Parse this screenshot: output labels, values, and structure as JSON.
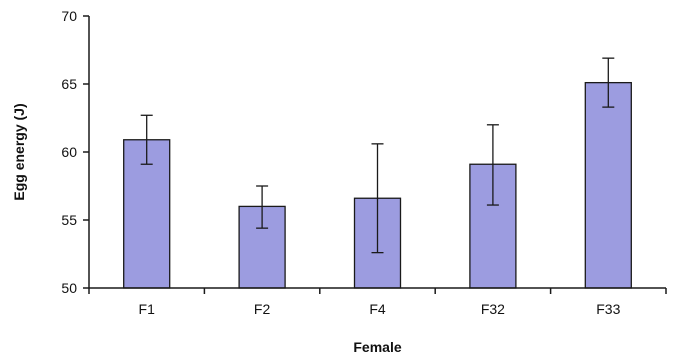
{
  "chart_data": {
    "type": "bar",
    "title": "",
    "xlabel": "Female",
    "ylabel": "Egg energy (J)",
    "categories": [
      "F1",
      "F2",
      "F4",
      "F32",
      "F33"
    ],
    "values": [
      60.9,
      56.0,
      56.6,
      59.1,
      65.1
    ],
    "error_bars": [
      {
        "low": 59.1,
        "high": 62.7
      },
      {
        "low": 54.4,
        "high": 57.5
      },
      {
        "low": 52.6,
        "high": 60.6
      },
      {
        "low": 56.1,
        "high": 62.0
      },
      {
        "low": 63.3,
        "high": 66.9
      }
    ],
    "ylim": [
      50,
      70
    ],
    "yticks": [
      "50",
      "55",
      "60",
      "65",
      "70"
    ],
    "grid": false,
    "legend": "none",
    "colors": {
      "bar_fill": "#9c9ce0",
      "bar_stroke": "#1a1a1a",
      "axis": "#1a1a1a",
      "error_bar": "#1a1a1a"
    }
  }
}
